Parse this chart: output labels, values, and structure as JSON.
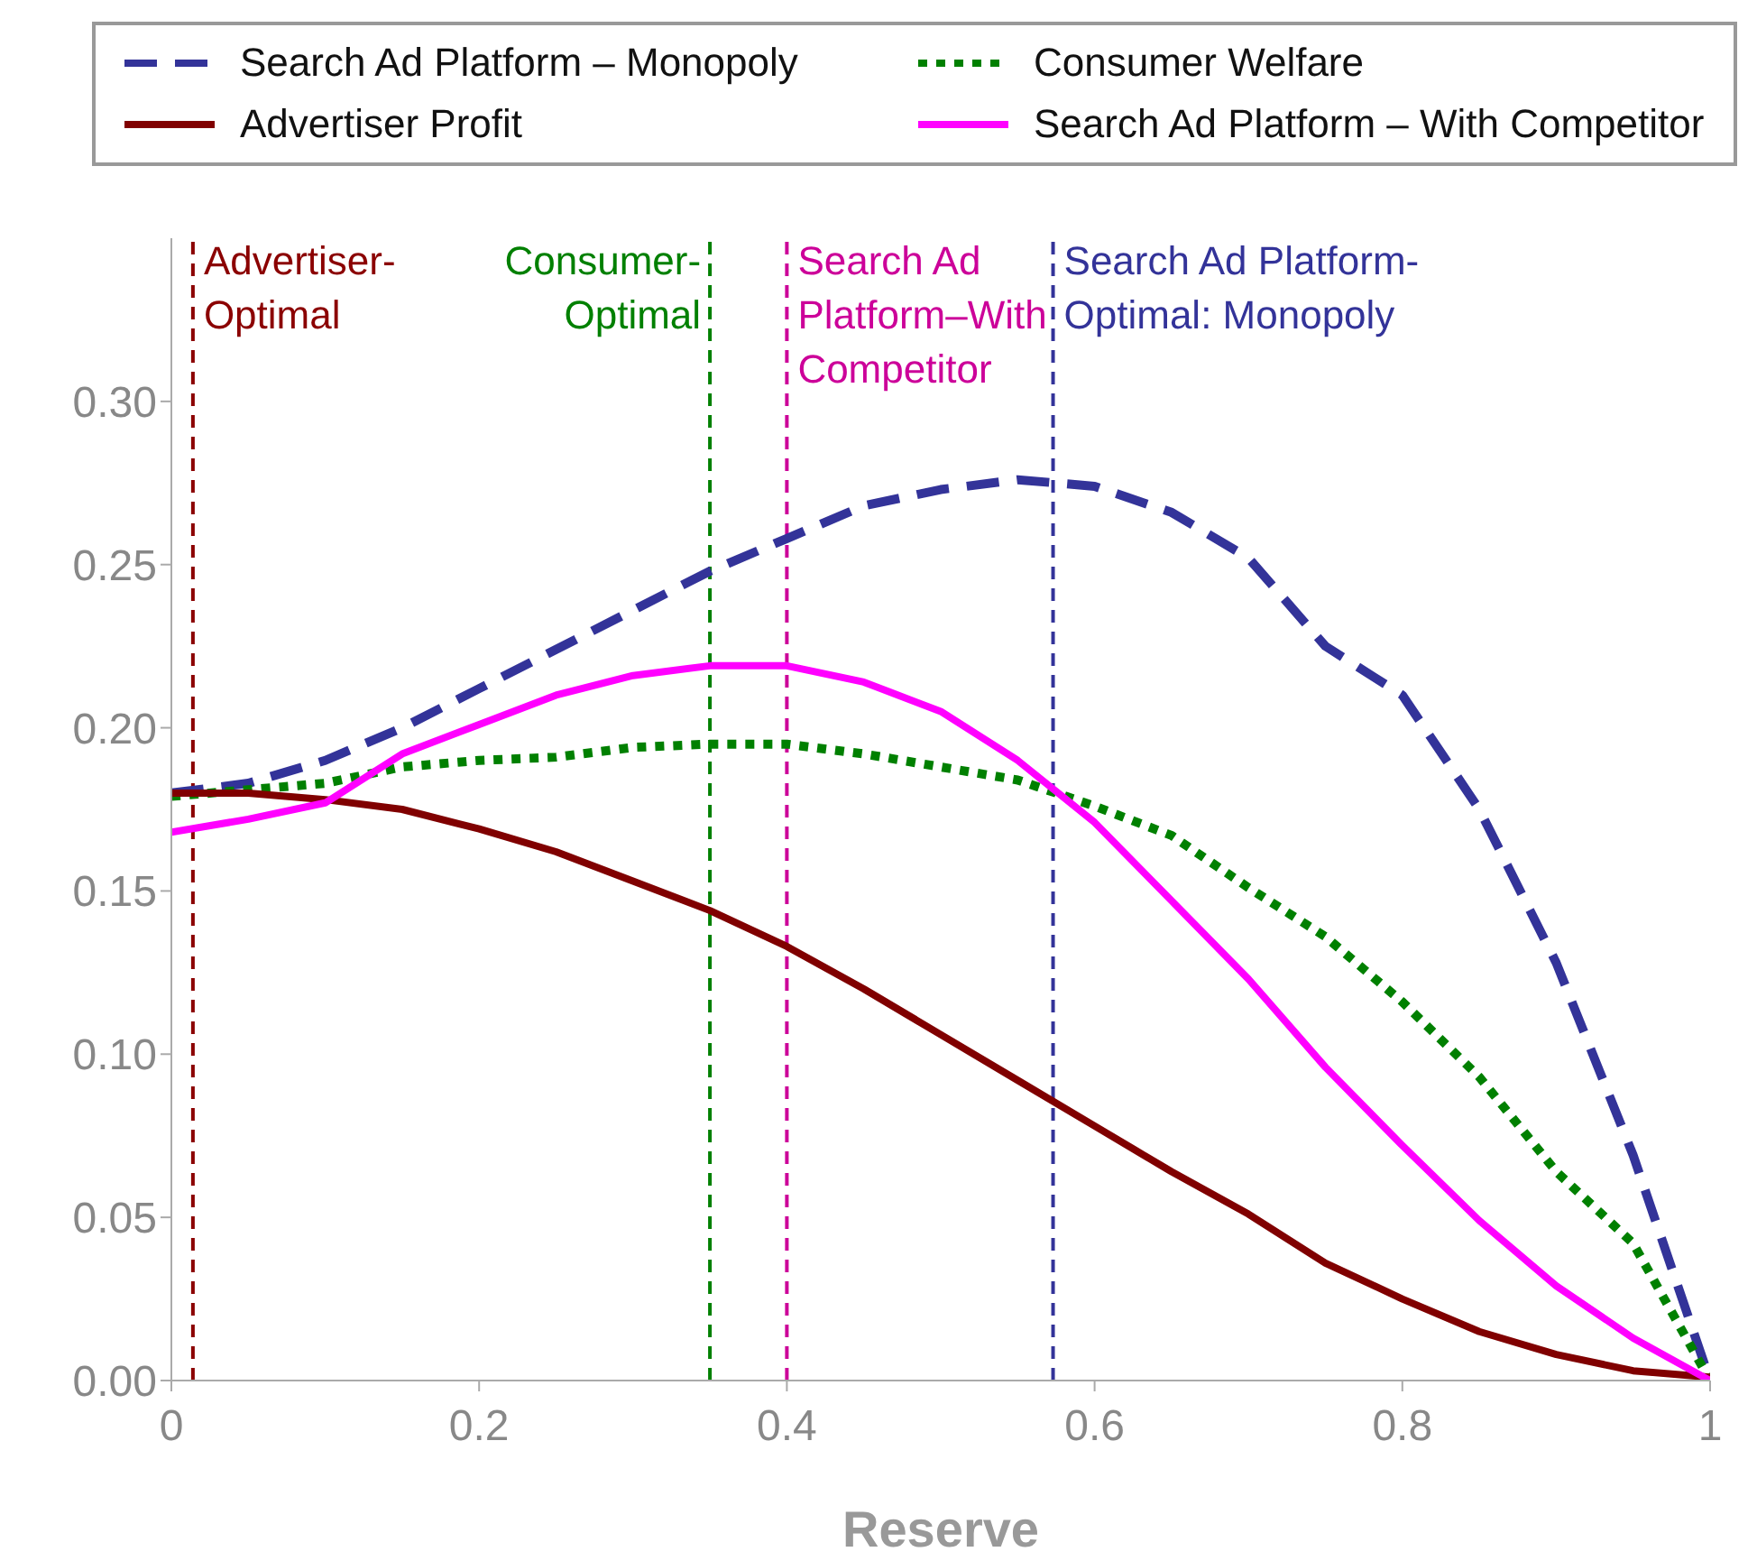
{
  "chart_data": {
    "type": "line",
    "xlabel": "Reserve",
    "x": [
      0,
      0.05,
      0.1,
      0.15,
      0.2,
      0.25,
      0.3,
      0.35,
      0.4,
      0.45,
      0.5,
      0.55,
      0.6,
      0.65,
      0.7,
      0.75,
      0.8,
      0.85,
      0.9,
      0.95,
      1
    ],
    "series": [
      {
        "name": "Search Ad Platform – Monopoly",
        "color": "#333399",
        "line_style": "dashed",
        "values": [
          0.18,
          0.183,
          0.19,
          0.2,
          0.212,
          0.224,
          0.236,
          0.248,
          0.258,
          0.268,
          0.273,
          0.276,
          0.274,
          0.266,
          0.252,
          0.225,
          0.21,
          0.175,
          0.128,
          0.069,
          0
        ]
      },
      {
        "name": "Consumer Welfare",
        "color": "#008000",
        "line_style": "dotted",
        "values": [
          0.179,
          0.181,
          0.183,
          0.188,
          0.19,
          0.191,
          0.194,
          0.195,
          0.195,
          0.192,
          0.188,
          0.184,
          0.176,
          0.167,
          0.151,
          0.136,
          0.116,
          0.093,
          0.064,
          0.042,
          0
        ]
      },
      {
        "name": "Advertiser Profit",
        "color": "#800000",
        "line_style": "solid",
        "values": [
          0.18,
          0.18,
          0.178,
          0.175,
          0.169,
          0.162,
          0.153,
          0.144,
          0.133,
          0.12,
          0.106,
          0.092,
          0.078,
          0.064,
          0.051,
          0.036,
          0.025,
          0.015,
          0.008,
          0.003,
          0.001
        ]
      },
      {
        "name": "Search Ad Platform – With Competitor",
        "color": "#ff00ff",
        "line_style": "solid",
        "values": [
          0.168,
          0.172,
          0.177,
          0.192,
          0.201,
          0.21,
          0.216,
          0.219,
          0.219,
          0.214,
          0.205,
          0.19,
          0.171,
          0.147,
          0.123,
          0.096,
          0.072,
          0.049,
          0.029,
          0.013,
          0
        ]
      }
    ],
    "ref_lines": [
      {
        "axis": "x",
        "value": 0.014,
        "label": "Advertiser-\nOptimal",
        "color": "#8b0000",
        "line_style": "dashed"
      },
      {
        "axis": "x",
        "value": 0.35,
        "label": "Consumer-\nOptimal",
        "color": "#008000",
        "line_style": "dashed"
      },
      {
        "axis": "x",
        "value": 0.4,
        "label": "Search Ad\nPlatform–With\nCompetitor",
        "color": "#cc0099",
        "line_style": "dashed"
      },
      {
        "axis": "x",
        "value": 0.573,
        "label": "Search Ad Platform-\nOptimal: Monopoly",
        "color": "#333399",
        "line_style": "dashed"
      }
    ],
    "xlim": [
      0,
      1
    ],
    "xticks": [
      0,
      0.2,
      0.4,
      0.6,
      0.8,
      1
    ],
    "ylim": [
      0,
      0.35
    ],
    "yticks": [
      {
        "value": 0,
        "label": "0.00"
      },
      {
        "value": 0.05,
        "label": "0.05"
      },
      {
        "value": 0.1,
        "label": "0.10"
      },
      {
        "value": 0.15,
        "label": "0.15"
      },
      {
        "value": 0.2,
        "label": "0.20"
      },
      {
        "value": 0.25,
        "label": "0.25"
      },
      {
        "value": 0.3,
        "label": "0.30"
      }
    ],
    "grid": false,
    "legend": "top",
    "marker": "none"
  }
}
